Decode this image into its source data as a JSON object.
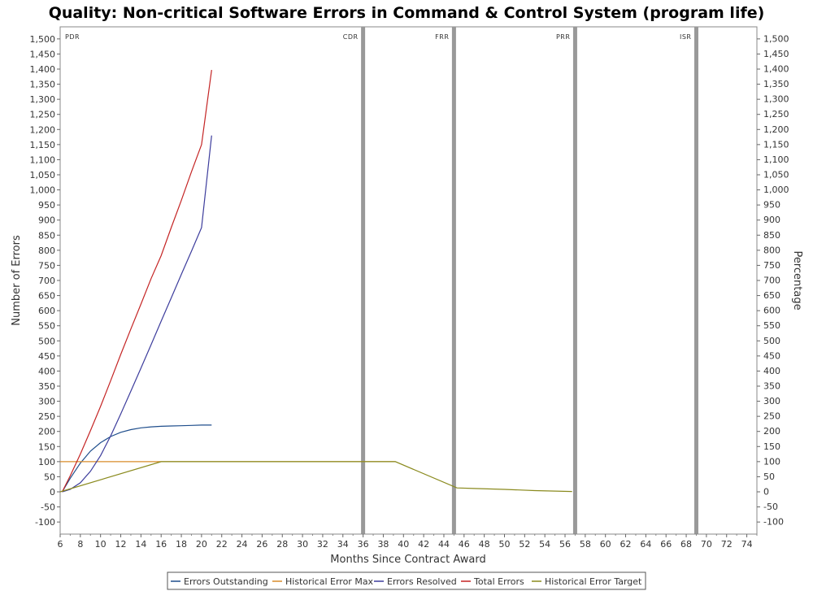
{
  "chart_data": {
    "type": "line",
    "title": "Quality: Non-critical Software Errors in Command & Control System (program life)",
    "xlabel": "Months Since Contract Award",
    "ylabel": "Number of Errors",
    "y2label": "Percentage",
    "xlim": [
      6,
      75
    ],
    "ylim": [
      -140,
      1540
    ],
    "x_ticks": [
      6,
      8,
      10,
      12,
      14,
      16,
      18,
      20,
      22,
      24,
      26,
      28,
      30,
      32,
      34,
      36,
      38,
      40,
      42,
      44,
      46,
      48,
      50,
      52,
      54,
      56,
      58,
      60,
      62,
      64,
      66,
      68,
      70,
      72,
      74
    ],
    "y_ticks": [
      -100,
      -50,
      0,
      50,
      100,
      150,
      200,
      250,
      300,
      350,
      400,
      450,
      500,
      550,
      600,
      650,
      700,
      750,
      800,
      850,
      900,
      950,
      1000,
      1050,
      1100,
      1150,
      1200,
      1250,
      1300,
      1350,
      1400,
      1450,
      1500
    ],
    "y_tick_labels": [
      "-100",
      "-50",
      "0",
      "50",
      "100",
      "150",
      "200",
      "250",
      "300",
      "350",
      "400",
      "450",
      "500",
      "550",
      "600",
      "650",
      "700",
      "750",
      "800",
      "850",
      "900",
      "950",
      "1,000",
      "1,050",
      "1,100",
      "1,150",
      "1,200",
      "1,250",
      "1,300",
      "1,350",
      "1,400",
      "1,450",
      "1,500"
    ],
    "y2_tick_labels": [
      "-100",
      "-50",
      "0",
      "50",
      "100",
      "150",
      "200",
      "250",
      "300",
      "350",
      "400",
      "450",
      "500",
      "550",
      "600",
      "650",
      "700",
      "750",
      "800",
      "850",
      "900",
      "950",
      "1,000",
      "1,050",
      "1,100",
      "1,150",
      "1,200",
      "1,250",
      "1,300",
      "1,350",
      "1,400",
      "1,450",
      "1,500"
    ],
    "grid": false,
    "legend_position": "bottom",
    "milestones": [
      {
        "label": "PDR",
        "x": 6
      },
      {
        "label": "CDR",
        "x": 36
      },
      {
        "label": "FRR",
        "x": 45
      },
      {
        "label": "PRR",
        "x": 57
      },
      {
        "label": "ISR",
        "x": 69
      }
    ],
    "milestone_color": "#999999",
    "series": [
      {
        "name": "Errors Outstanding",
        "color": "#1f4e8c",
        "x": [
          6.2,
          7,
          8,
          9,
          10,
          11,
          12,
          13,
          14,
          15,
          16,
          17,
          18,
          19,
          20,
          21
        ],
        "y": [
          0,
          45,
          95,
          135,
          163,
          183,
          197,
          206,
          212,
          215,
          217,
          218,
          219,
          220,
          221,
          221
        ]
      },
      {
        "name": "Historical Error Max",
        "color": "#d98c2a",
        "x": [
          6,
          39.2
        ],
        "y": [
          100,
          100
        ]
      },
      {
        "name": "Errors Resolved",
        "color": "#3c3c9c",
        "x": [
          6.2,
          7,
          8,
          9,
          10,
          11,
          12,
          13,
          14,
          15,
          16,
          17,
          18,
          19,
          20,
          21
        ],
        "y": [
          0,
          8,
          30,
          68,
          120,
          185,
          258,
          333,
          410,
          487,
          565,
          642,
          720,
          797,
          875,
          1180
        ]
      },
      {
        "name": "Total Errors",
        "color": "#c42424",
        "x": [
          6.2,
          7,
          8,
          9,
          10,
          11,
          12,
          13,
          14,
          15,
          16,
          17,
          18,
          19,
          20,
          21
        ],
        "y": [
          0,
          53,
          125,
          203,
          283,
          368,
          455,
          539,
          622,
          706,
          782,
          875,
          965,
          1060,
          1150,
          1397
        ]
      },
      {
        "name": "Historical Error Target",
        "color": "#8a8a1e",
        "x": [
          6,
          16,
          39.2,
          45.3,
          47,
          50,
          53,
          56.7
        ],
        "y": [
          0,
          100,
          100,
          13,
          11,
          8,
          4,
          1
        ]
      }
    ]
  }
}
